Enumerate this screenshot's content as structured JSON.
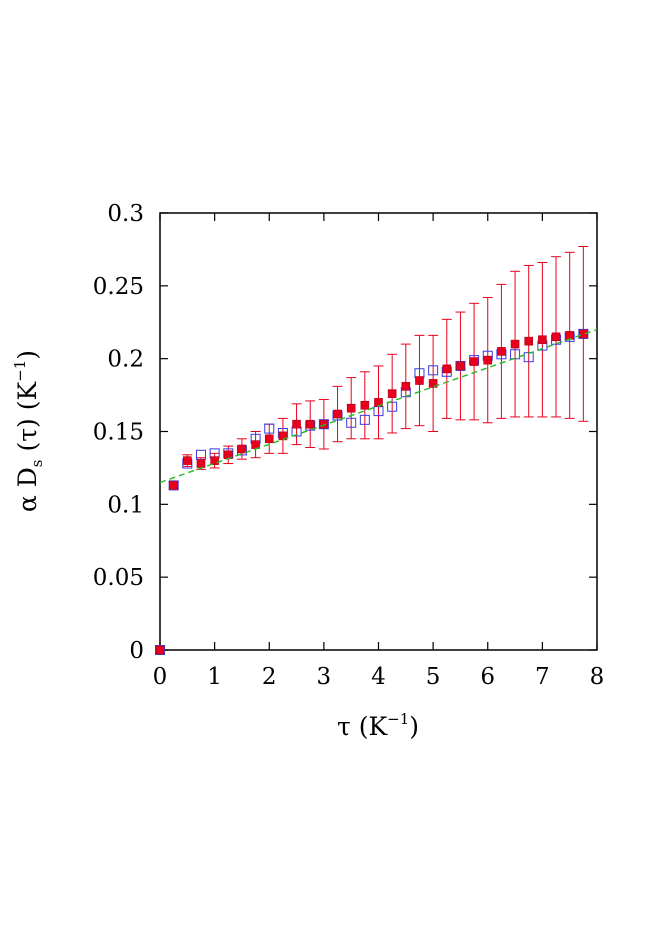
{
  "chart_data": {
    "type": "scatter",
    "xlabel": {
      "main": "τ (K",
      "sup": "−1",
      "tail": ")"
    },
    "ylabel": {
      "a": "α D",
      "sub": "s",
      "b": " (τ) (K",
      "sup": "−1",
      "tail": ")"
    },
    "xlim": [
      0,
      8
    ],
    "ylim": [
      0,
      0.3
    ],
    "x_ticks": [
      0,
      1,
      2,
      3,
      4,
      5,
      6,
      7,
      8
    ],
    "y_ticks": [
      0,
      0.05,
      0.1,
      0.15,
      0.2,
      0.25,
      0.3
    ],
    "x_tick_labels": [
      "0",
      "1",
      "2",
      "3",
      "4",
      "5",
      "6",
      "7",
      "8"
    ],
    "y_tick_labels": [
      "0",
      "0.05",
      "0.1",
      "0.15",
      "0.2",
      "0.25",
      "0.3"
    ],
    "grid": false,
    "series": [
      {
        "marker": "filled-square",
        "color": "#e8001c",
        "x": [
          0.0,
          0.25,
          0.5,
          0.75,
          1.0,
          1.25,
          1.5,
          1.75,
          2.0,
          2.25,
          2.5,
          2.75,
          3.0,
          3.25,
          3.5,
          3.75,
          4.0,
          4.25,
          4.5,
          4.75,
          5.0,
          5.25,
          5.5,
          5.75,
          6.0,
          6.25,
          6.5,
          6.75,
          7.0,
          7.25,
          7.5,
          7.75
        ],
        "y": [
          0.0,
          0.113,
          0.13,
          0.128,
          0.13,
          0.134,
          0.138,
          0.141,
          0.145,
          0.147,
          0.155,
          0.155,
          0.155,
          0.162,
          0.166,
          0.168,
          0.17,
          0.176,
          0.181,
          0.185,
          0.183,
          0.193,
          0.195,
          0.198,
          0.199,
          0.205,
          0.21,
          0.212,
          0.213,
          0.215,
          0.216,
          0.217
        ],
        "yerr": [
          0.0,
          0.002,
          0.004,
          0.004,
          0.005,
          0.006,
          0.007,
          0.009,
          0.01,
          0.012,
          0.014,
          0.016,
          0.017,
          0.019,
          0.021,
          0.023,
          0.025,
          0.027,
          0.029,
          0.031,
          0.033,
          0.034,
          0.037,
          0.04,
          0.043,
          0.046,
          0.05,
          0.052,
          0.053,
          0.055,
          0.057,
          0.06
        ]
      },
      {
        "marker": "open-square",
        "color": "#3a3ae8",
        "x": [
          0.0,
          0.25,
          0.5,
          0.75,
          1.0,
          1.25,
          1.5,
          1.75,
          2.0,
          2.25,
          2.5,
          2.75,
          3.0,
          3.25,
          3.5,
          3.75,
          4.0,
          4.25,
          4.5,
          4.75,
          5.0,
          5.25,
          5.5,
          5.75,
          6.0,
          6.25,
          6.5,
          6.75,
          7.0,
          7.25,
          7.5,
          7.75
        ],
        "y": [
          0.0,
          0.113,
          0.128,
          0.134,
          0.135,
          0.135,
          0.137,
          0.145,
          0.152,
          0.149,
          0.15,
          0.154,
          0.155,
          0.161,
          0.156,
          0.158,
          0.164,
          0.167,
          0.177,
          0.19,
          0.192,
          0.191,
          0.195,
          0.199,
          0.202,
          0.203,
          0.203,
          0.201,
          0.209,
          0.213,
          0.215,
          0.217
        ]
      },
      {
        "type": "line",
        "style": "dashed",
        "color": "#22bb22",
        "x": [
          0,
          8
        ],
        "y": [
          0.115,
          0.22
        ]
      }
    ]
  }
}
